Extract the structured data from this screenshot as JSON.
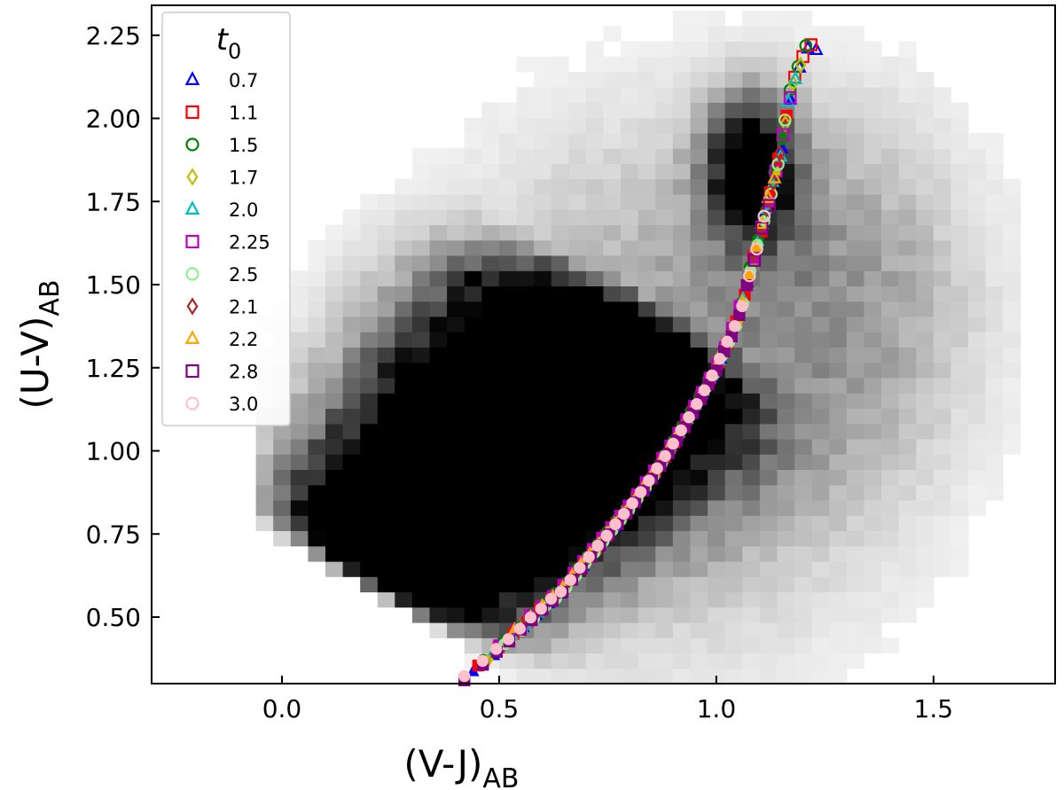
{
  "chart_data": {
    "type": "scatter",
    "xlabel": "(V-J)",
    "xlabel_sub": "AB",
    "ylabel": "(U-V)",
    "ylabel_sub": "AB",
    "xlim": [
      -0.3,
      1.78
    ],
    "ylim": [
      0.3,
      2.34
    ],
    "x_ticks": [
      0.0,
      0.5,
      1.0,
      1.5
    ],
    "x_tick_labels": [
      "0.0",
      "0.5",
      "1.0",
      "1.5"
    ],
    "y_ticks": [
      0.5,
      0.75,
      1.0,
      1.25,
      1.5,
      1.75,
      2.0,
      2.25
    ],
    "y_tick_labels": [
      "0.50",
      "0.75",
      "1.00",
      "1.25",
      "1.50",
      "1.75",
      "2.00",
      "2.25"
    ],
    "background": {
      "type": "2d-density-histogram",
      "colormap": "Greys",
      "description_hidden": true
    },
    "legend": {
      "title": "t",
      "title_sub": "0",
      "position": "top-left"
    },
    "series": [
      {
        "name": "0.7",
        "marker": "triangle",
        "color": "#0000ff",
        "t0": 0.7
      },
      {
        "name": "1.1",
        "marker": "square",
        "color": "#ff0000",
        "t0": 1.1
      },
      {
        "name": "1.5",
        "marker": "circle",
        "color": "#008000",
        "t0": 1.5
      },
      {
        "name": "1.7",
        "marker": "diamond",
        "color": "#bfbf00",
        "t0": 1.7
      },
      {
        "name": "2.0",
        "marker": "triangle",
        "color": "#00bfbf",
        "t0": 2.0
      },
      {
        "name": "2.25",
        "marker": "square",
        "color": "#bf00bf",
        "t0": 2.25
      },
      {
        "name": "2.5",
        "marker": "circle",
        "color": "#90ee90",
        "t0": 2.5
      },
      {
        "name": "2.1",
        "marker": "diamond",
        "color": "#a52a2a",
        "t0": 2.1
      },
      {
        "name": "2.2",
        "marker": "triangle",
        "color": "#ffa500",
        "t0": 2.2
      },
      {
        "name": "2.8",
        "marker": "square",
        "color": "#800080",
        "t0": 2.8
      },
      {
        "name": "3.0",
        "marker": "circle",
        "color": "#ffc0cb",
        "t0": 3.0
      }
    ],
    "track": {
      "points": [
        [
          0.4,
          0.3
        ],
        [
          0.45,
          0.35
        ],
        [
          0.5,
          0.41
        ],
        [
          0.55,
          0.47
        ],
        [
          0.6,
          0.53
        ],
        [
          0.65,
          0.59
        ],
        [
          0.7,
          0.67
        ],
        [
          0.75,
          0.75
        ],
        [
          0.8,
          0.83
        ],
        [
          0.85,
          0.92
        ],
        [
          0.9,
          1.02
        ],
        [
          0.95,
          1.13
        ],
        [
          1.0,
          1.25
        ],
        [
          1.05,
          1.4
        ],
        [
          1.08,
          1.55
        ],
        [
          1.11,
          1.7
        ],
        [
          1.14,
          1.85
        ],
        [
          1.16,
          2.0
        ],
        [
          1.18,
          2.12
        ],
        [
          1.21,
          2.22
        ]
      ]
    }
  }
}
